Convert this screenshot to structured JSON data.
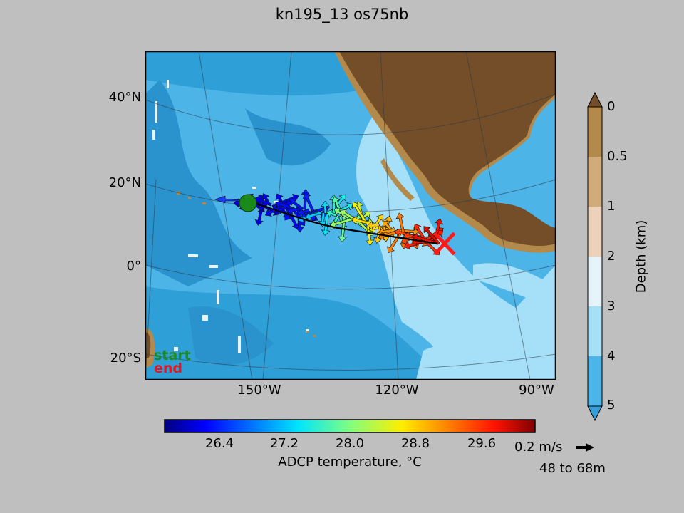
{
  "title": "kn195_13 os75nb",
  "map": {
    "lat_labels": [
      "40°N",
      "20°N",
      "0°",
      "20°S"
    ],
    "lon_labels": [
      "150°W",
      "120°W",
      "90°W"
    ],
    "start_label": "start",
    "end_label": "end",
    "colors": {
      "land_dark": "#744e28",
      "land_mid": "#b48a4c",
      "land_light": "#d4ab78",
      "ocean_deep": "#2f9fd8",
      "ocean_mid": "#4db4e8",
      "ocean_shallow": "#a6e0f8",
      "start_marker": "#1a8a1a",
      "end_marker": "#ff1a1a"
    }
  },
  "depth_colorbar": {
    "label": "Depth (km)",
    "ticks": [
      "0",
      "0.5",
      "1",
      "2",
      "3",
      "4",
      "5"
    ],
    "colors": [
      "#b48a4c",
      "#d2ab7a",
      "#ecd2ba",
      "#e6f3f8",
      "#a6e0f8",
      "#4db4e8",
      "#2f9fd8"
    ],
    "cap_top_color": "#744e28",
    "cap_bottom_color": "#3a9fd8"
  },
  "temperature_colorbar": {
    "label": "ADCP temperature, °C",
    "ticks": [
      "26.4",
      "27.2",
      "28.0",
      "28.8",
      "29.6"
    ],
    "colormap": "jet"
  },
  "reference_vector": {
    "label": "0.2 m/s",
    "depth_range": "48 to 68m"
  }
}
